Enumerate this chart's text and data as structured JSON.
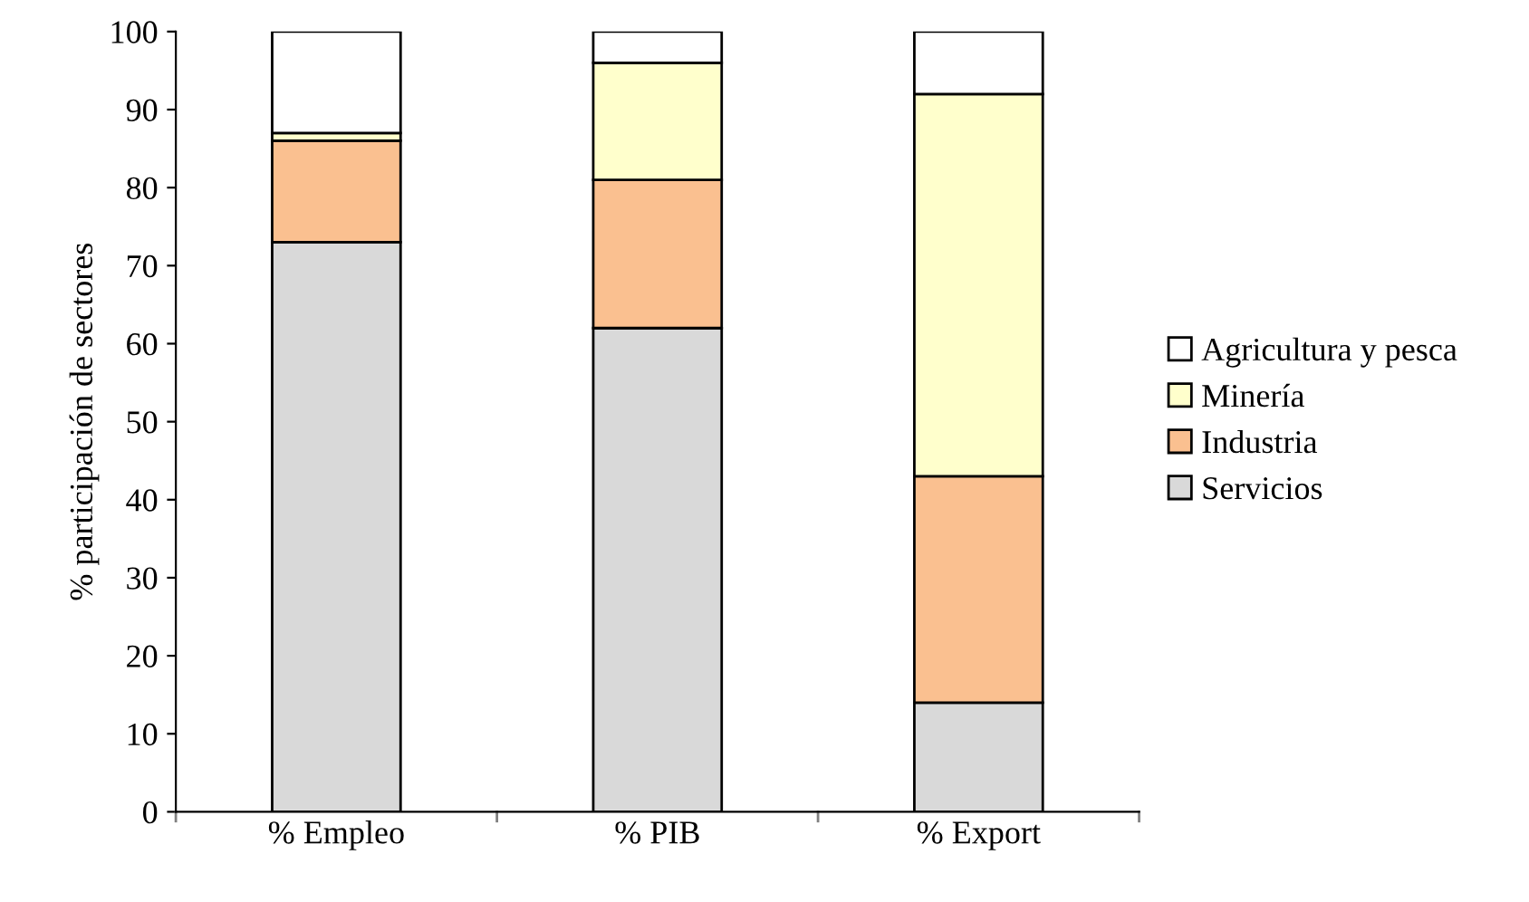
{
  "chart_data": {
    "type": "bar",
    "stacked": true,
    "ylabel": "% participación de sectores",
    "categories": [
      "% Empleo",
      "% PIB",
      "% Export"
    ],
    "series": [
      {
        "name": "Servicios",
        "color": "#d9d9d9",
        "values": [
          73,
          62,
          14
        ]
      },
      {
        "name": "Industria",
        "color": "#fac090",
        "values": [
          13,
          19,
          29
        ]
      },
      {
        "name": "Minería",
        "color": "#ffffcc",
        "values": [
          1,
          15,
          49
        ]
      },
      {
        "name": "Agricultura y pesca",
        "color": "#ffffff",
        "values": [
          13,
          4,
          8
        ]
      }
    ],
    "ylim": [
      0,
      100
    ],
    "yticks": [
      0,
      10,
      20,
      30,
      40,
      50,
      60,
      70,
      80,
      90,
      100
    ],
    "grid": false,
    "legend": "right"
  }
}
